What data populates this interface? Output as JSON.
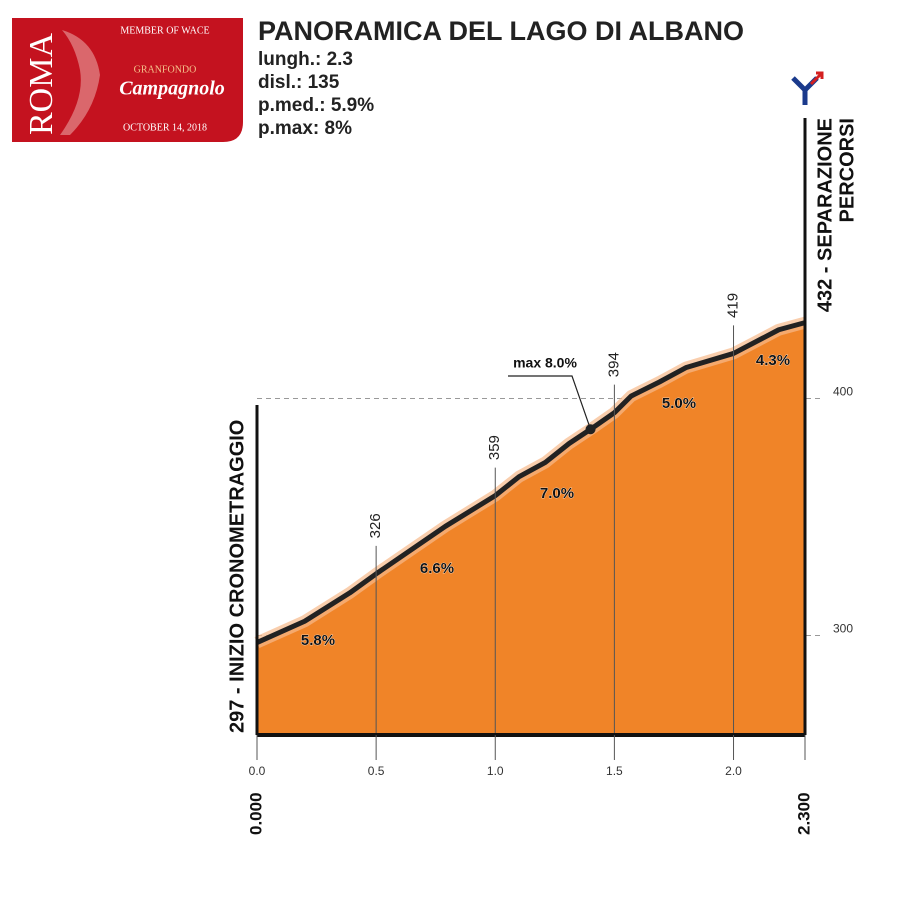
{
  "logo": {
    "city": "ROMA",
    "member": "MEMBER OF WACE",
    "event": "GRANFONDO",
    "brand": "Campagnolo",
    "date": "OCTOBER 14, 2018"
  },
  "chart_data": {
    "type": "area",
    "title": "PANORAMICA DEL LAGO DI ALBANO",
    "stats": [
      "lungh.: 2.3",
      "disl.: 135",
      "p.med.: 5.9%",
      "p.max: 8%"
    ],
    "x": [
      0,
      0.2,
      0.39,
      0.5,
      0.79,
      1.0,
      1.1,
      1.21,
      1.31,
      1.4,
      1.5,
      1.57,
      1.69,
      1.8,
      2.0,
      2.19,
      2.3
    ],
    "values": [
      297,
      306,
      318,
      326,
      346,
      359,
      367,
      373,
      381,
      387,
      394,
      401,
      407,
      413,
      419,
      429,
      432
    ],
    "color": "#f08428",
    "xlim": [
      0,
      2.3
    ],
    "ylim": [
      258,
      440
    ],
    "xticks": [
      {
        "value": 0,
        "label": "0.0"
      },
      0.5,
      {
        "value": 1,
        "label": "1.0"
      },
      1.5,
      {
        "value": 2,
        "label": "2.0"
      }
    ],
    "yticks": [
      300,
      400
    ],
    "grid": true,
    "km_labels": [
      {
        "value": 0,
        "label": "0.000"
      },
      {
        "value": 2.3,
        "label": "2.300"
      }
    ],
    "gradients": [
      {
        "value": 5.8,
        "label": "5.8%"
      },
      {
        "value": 6.6,
        "label": "6.6%"
      },
      {
        "value": 7.0,
        "label": "7.0%"
      },
      {
        "value": 5.0,
        "label": "5.0%"
      },
      {
        "value": 4.3,
        "label": "4.3%"
      }
    ],
    "max_label": "max 8.0%",
    "start_label": "297 - INIZIO CRONOMETRAGGIO",
    "end_label": [
      "432 - SEPARAZIONE",
      "PERCORSI"
    ]
  }
}
